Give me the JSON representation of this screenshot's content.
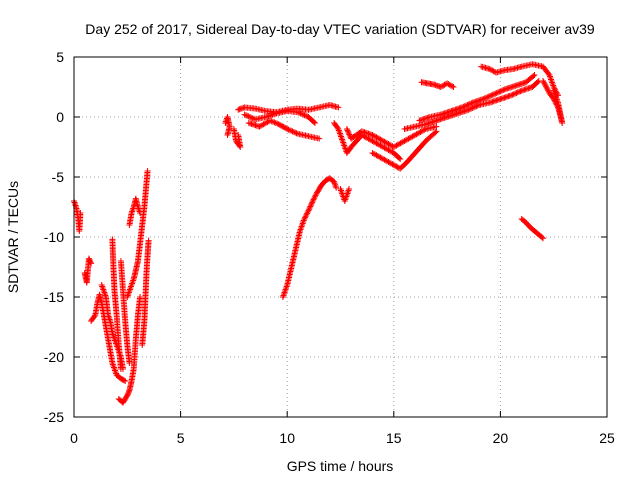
{
  "chart_data": {
    "type": "scatter",
    "title": "Day 252 of 2017, Sidereal Day-to-day VTEC variation (SDTVAR) for receiver av39",
    "xlabel": "GPS time / hours",
    "ylabel": "SDTVAR / TECUs",
    "xlim": [
      0,
      25
    ],
    "ylim": [
      -25,
      5
    ],
    "xticks": [
      "0",
      "5",
      "10",
      "15",
      "20",
      "25"
    ],
    "yticks": [
      "5",
      "0",
      "-5",
      "-10",
      "-15",
      "-20",
      "-25"
    ],
    "grid": true,
    "marker": "plus",
    "color": "#ff0000",
    "segments": [
      {
        "points": [
          [
            0.0,
            -7.0
          ],
          [
            0.1,
            -7.5
          ],
          [
            0.2,
            -8.5
          ],
          [
            0.25,
            -9.5
          ],
          [
            0.3,
            -8.0
          ]
        ]
      },
      {
        "points": [
          [
            0.5,
            -13.0
          ],
          [
            0.6,
            -13.8
          ],
          [
            0.7,
            -11.8
          ],
          [
            0.8,
            -12.2
          ]
        ]
      },
      {
        "points": [
          [
            0.8,
            -17.0
          ],
          [
            1.0,
            -16.5
          ],
          [
            1.1,
            -15.5
          ],
          [
            1.2,
            -14.8
          ],
          [
            1.3,
            -15.5
          ],
          [
            1.4,
            -16.5
          ],
          [
            1.5,
            -17.5
          ],
          [
            1.6,
            -18.5
          ],
          [
            1.7,
            -19.5
          ],
          [
            1.8,
            -20.5
          ],
          [
            1.9,
            -21.0
          ],
          [
            2.0,
            -21.5
          ],
          [
            2.2,
            -21.8
          ],
          [
            2.4,
            -22.0
          ]
        ]
      },
      {
        "points": [
          [
            1.3,
            -14.0
          ],
          [
            1.5,
            -15.0
          ],
          [
            1.6,
            -16.5
          ],
          [
            1.7,
            -17.0
          ],
          [
            1.8,
            -18.0
          ],
          [
            2.0,
            -19.0
          ],
          [
            2.2,
            -20.0
          ],
          [
            2.3,
            -21.0
          ]
        ]
      },
      {
        "points": [
          [
            1.8,
            -10.2
          ],
          [
            1.85,
            -12.5
          ],
          [
            1.9,
            -14.5
          ],
          [
            2.0,
            -16.5
          ],
          [
            2.1,
            -19.0
          ],
          [
            2.2,
            -21.0
          ]
        ]
      },
      {
        "points": [
          [
            2.2,
            -12.0
          ],
          [
            2.3,
            -14.5
          ],
          [
            2.4,
            -17.0
          ],
          [
            2.5,
            -19.0
          ],
          [
            2.6,
            -20.5
          ]
        ]
      },
      {
        "points": [
          [
            2.1,
            -23.5
          ],
          [
            2.3,
            -23.8
          ],
          [
            2.5,
            -23.2
          ],
          [
            2.6,
            -22.8
          ],
          [
            2.7,
            -22.0
          ],
          [
            2.8,
            -21.0
          ],
          [
            2.9,
            -18.5
          ],
          [
            3.0,
            -16.5
          ],
          [
            3.1,
            -15.0
          ]
        ]
      },
      {
        "points": [
          [
            2.5,
            -15.0
          ],
          [
            2.6,
            -14.5
          ],
          [
            2.7,
            -14.0
          ],
          [
            2.8,
            -13.5
          ],
          [
            2.9,
            -12.8
          ],
          [
            3.0,
            -12.0
          ],
          [
            3.1,
            -10.5
          ],
          [
            3.2,
            -9.0
          ],
          [
            3.3,
            -7.5
          ],
          [
            3.4,
            -5.5
          ],
          [
            3.45,
            -4.5
          ]
        ]
      },
      {
        "points": [
          [
            2.6,
            -9.0
          ],
          [
            2.7,
            -8.0
          ],
          [
            2.8,
            -7.5
          ],
          [
            2.9,
            -6.8
          ],
          [
            3.0,
            -7.5
          ],
          [
            3.1,
            -8.0
          ]
        ]
      },
      {
        "points": [
          [
            3.2,
            -19.0
          ],
          [
            3.3,
            -17.0
          ],
          [
            3.35,
            -15.0
          ],
          [
            3.4,
            -13.0
          ],
          [
            3.45,
            -11.5
          ],
          [
            3.5,
            -10.3
          ]
        ]
      },
      {
        "points": [
          [
            7.1,
            -0.5
          ],
          [
            7.2,
            0.0
          ],
          [
            7.3,
            -0.8
          ],
          [
            7.2,
            -1.5
          ]
        ]
      },
      {
        "points": [
          [
            7.5,
            -1.0
          ],
          [
            7.6,
            -2.0
          ],
          [
            7.8,
            -2.5
          ],
          [
            7.7,
            -1.5
          ]
        ]
      },
      {
        "points": [
          [
            7.7,
            0.6
          ],
          [
            8.0,
            0.8
          ],
          [
            8.5,
            0.7
          ],
          [
            9.0,
            0.5
          ],
          [
            9.5,
            0.4
          ],
          [
            10.0,
            0.6
          ],
          [
            10.5,
            0.7
          ],
          [
            11.0,
            0.6
          ],
          [
            11.5,
            0.8
          ],
          [
            12.0,
            1.0
          ],
          [
            12.4,
            0.8
          ]
        ]
      },
      {
        "points": [
          [
            8.0,
            0.2
          ],
          [
            8.5,
            -0.2
          ],
          [
            9.0,
            0.0
          ],
          [
            9.5,
            0.3
          ],
          [
            10.0,
            0.5
          ],
          [
            10.5,
            0.4
          ],
          [
            11.0,
            0.0
          ],
          [
            11.3,
            -0.5
          ]
        ]
      },
      {
        "points": [
          [
            8.2,
            -0.5
          ],
          [
            8.7,
            -0.8
          ],
          [
            9.2,
            -0.3
          ],
          [
            9.6,
            -0.6
          ],
          [
            10.0,
            -1.0
          ],
          [
            10.5,
            -1.4
          ],
          [
            11.0,
            -1.6
          ],
          [
            11.5,
            -1.8
          ]
        ]
      },
      {
        "points": [
          [
            12.2,
            -0.5
          ],
          [
            12.4,
            -1.0
          ],
          [
            12.6,
            -2.0
          ],
          [
            12.8,
            -3.0
          ],
          [
            13.0,
            -2.5
          ],
          [
            13.5,
            -1.5
          ],
          [
            14.0,
            -2.0
          ],
          [
            14.5,
            -2.5
          ],
          [
            15.0,
            -3.0
          ],
          [
            15.3,
            -3.5
          ]
        ]
      },
      {
        "points": [
          [
            12.8,
            -1.0
          ],
          [
            13.0,
            -1.8
          ],
          [
            13.5,
            -1.2
          ],
          [
            14.0,
            -1.5
          ],
          [
            14.5,
            -2.0
          ],
          [
            15.0,
            -2.5
          ],
          [
            15.5,
            -2.0
          ],
          [
            16.0,
            -1.5
          ],
          [
            16.5,
            -1.0
          ],
          [
            17.0,
            -0.8
          ]
        ]
      },
      {
        "points": [
          [
            14.0,
            -3.0
          ],
          [
            14.5,
            -3.5
          ],
          [
            15.0,
            -4.0
          ],
          [
            15.3,
            -4.3
          ],
          [
            15.6,
            -3.8
          ],
          [
            16.0,
            -3.0
          ],
          [
            16.5,
            -2.0
          ],
          [
            17.0,
            -1.2
          ]
        ]
      },
      {
        "points": [
          [
            15.5,
            -1.0
          ],
          [
            16.0,
            -0.8
          ],
          [
            16.5,
            -0.6
          ],
          [
            17.0,
            -0.3
          ],
          [
            17.5,
            0.0
          ],
          [
            18.0,
            0.3
          ],
          [
            18.5,
            0.6
          ],
          [
            19.0,
            1.0
          ],
          [
            19.5,
            1.2
          ],
          [
            20.0,
            1.5
          ],
          [
            20.5,
            1.8
          ],
          [
            21.0,
            2.2
          ],
          [
            21.5,
            2.5
          ],
          [
            21.8,
            3.0
          ]
        ]
      },
      {
        "points": [
          [
            16.2,
            -0.3
          ],
          [
            16.7,
            0.0
          ],
          [
            17.2,
            0.2
          ],
          [
            17.7,
            0.5
          ],
          [
            18.2,
            0.8
          ],
          [
            18.7,
            1.2
          ],
          [
            19.2,
            1.5
          ],
          [
            19.7,
            1.9
          ],
          [
            20.2,
            2.3
          ],
          [
            20.7,
            2.6
          ],
          [
            21.2,
            2.9
          ],
          [
            21.6,
            3.5
          ]
        ]
      },
      {
        "points": [
          [
            16.3,
            2.9
          ],
          [
            16.6,
            2.8
          ],
          [
            16.9,
            2.7
          ],
          [
            17.2,
            2.5
          ],
          [
            17.5,
            2.8
          ],
          [
            17.8,
            2.5
          ]
        ]
      },
      {
        "points": [
          [
            19.1,
            4.2
          ],
          [
            19.5,
            4.0
          ],
          [
            19.8,
            3.7
          ],
          [
            20.2,
            3.9
          ],
          [
            20.6,
            4.0
          ],
          [
            21.0,
            4.2
          ],
          [
            21.5,
            4.4
          ],
          [
            22.0,
            4.2
          ],
          [
            22.3,
            3.5
          ],
          [
            22.5,
            2.5
          ],
          [
            22.7,
            1.8
          ]
        ]
      },
      {
        "points": [
          [
            22.0,
            3.0
          ],
          [
            22.3,
            2.0
          ],
          [
            22.5,
            1.5
          ],
          [
            22.7,
            0.8
          ],
          [
            22.8,
            0.2
          ],
          [
            22.9,
            -0.5
          ],
          [
            22.7,
            1.2
          ],
          [
            22.5,
            2.2
          ]
        ]
      },
      {
        "points": [
          [
            9.8,
            -15.0
          ],
          [
            10.0,
            -14.0
          ],
          [
            10.2,
            -12.5
          ],
          [
            10.4,
            -11.0
          ],
          [
            10.6,
            -9.5
          ],
          [
            10.8,
            -8.5
          ],
          [
            11.0,
            -7.8
          ],
          [
            11.2,
            -7.0
          ],
          [
            11.4,
            -6.3
          ],
          [
            11.6,
            -5.7
          ],
          [
            11.8,
            -5.3
          ],
          [
            12.0,
            -5.1
          ],
          [
            12.2,
            -5.4
          ],
          [
            12.3,
            -5.9
          ]
        ]
      },
      {
        "points": [
          [
            12.5,
            -6.0
          ],
          [
            12.6,
            -6.5
          ],
          [
            12.7,
            -7.0
          ],
          [
            12.8,
            -6.5
          ],
          [
            12.9,
            -6.0
          ]
        ]
      },
      {
        "points": [
          [
            21.0,
            -8.5
          ],
          [
            21.2,
            -8.8
          ],
          [
            21.4,
            -9.2
          ],
          [
            21.6,
            -9.5
          ],
          [
            21.8,
            -9.8
          ],
          [
            22.0,
            -10.1
          ]
        ]
      }
    ]
  }
}
